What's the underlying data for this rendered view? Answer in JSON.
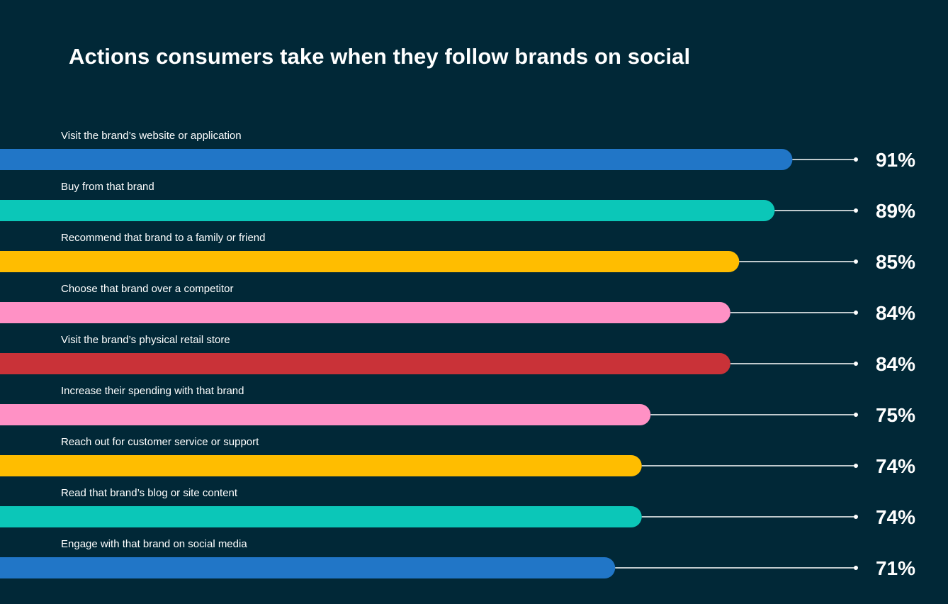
{
  "chart_data": {
    "type": "bar",
    "orientation": "horizontal",
    "title": "Actions consumers take when they follow brands on social",
    "xlabel": "",
    "ylabel": "",
    "xlim": [
      0,
      100
    ],
    "grid": false,
    "legend": "none",
    "categories": [
      "Visit the brand’s website or application",
      "Buy from that brand",
      "Recommend that brand to a family or friend",
      "Choose that brand over a competitor",
      "Visit the brand’s physical retail store",
      "Increase their spending with that brand",
      "Reach out for customer service or support",
      "Read that brand’s blog or site content",
      "Engage with that brand on social media"
    ],
    "values": [
      91,
      89,
      85,
      84,
      84,
      75,
      74,
      74,
      71
    ],
    "value_labels": [
      "91%",
      "89%",
      "85%",
      "84%",
      "84%",
      "75%",
      "74%",
      "74%",
      "71%"
    ],
    "bar_colors": [
      "#2176c7",
      "#0bc7b8",
      "#ffbd00",
      "#ff91c5",
      "#c93238",
      "#ff91c5",
      "#ffbd00",
      "#0bc7b8",
      "#2176c7"
    ],
    "colors": {
      "background": "#012837",
      "leader_line": "#ffffff",
      "text": "#ffffff"
    }
  }
}
